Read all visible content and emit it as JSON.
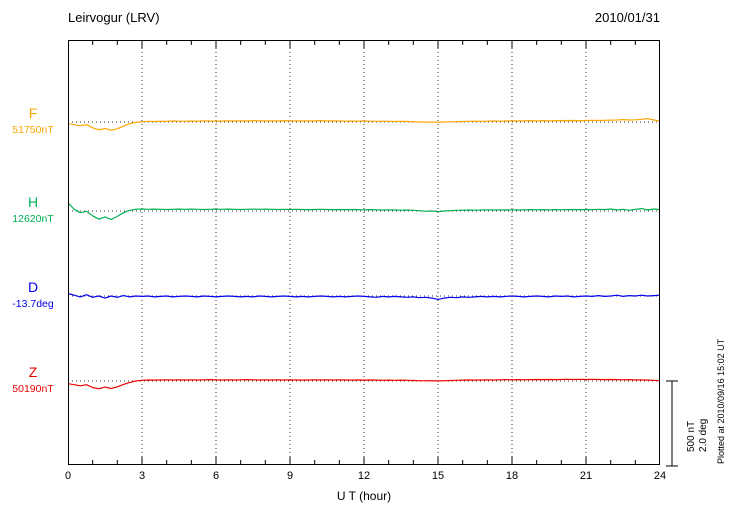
{
  "header": {
    "title": "Leirvogur (LRV)",
    "date": "2010/01/31"
  },
  "axis": {
    "xlabel": "U T (hour)",
    "ticks": [
      "0",
      "3",
      "6",
      "9",
      "12",
      "15",
      "18",
      "21",
      "24"
    ]
  },
  "scalebar": {
    "label_nt": "500 nT",
    "label_deg": "2.0 deg"
  },
  "watermark": "Plotted at 2010/09/16 15:02 UT",
  "chart_data": {
    "type": "line",
    "title": "Leirvogur (LRV)",
    "subtitle": "2010/01/31",
    "xlabel": "U T (hour)",
    "x_range_hours": [
      0,
      24
    ],
    "x_step_hours": 0.25,
    "x_tick_hours": [
      0,
      3,
      6,
      9,
      12,
      15,
      18,
      21,
      24
    ],
    "grid": "dotted vertical gridlines every 3 hours; dotted horizontal baseline per trace",
    "legend_position": "left margin, one colored label per trace",
    "scale": {
      "bar_nT": 500,
      "bar_deg": 2.0
    },
    "series": [
      {
        "name": "F",
        "baseline_label": "51750nT",
        "baseline": 51750,
        "units": "nT",
        "color": "#FFA500",
        "values": [
          51740,
          51734,
          51728,
          51734,
          51716,
          51704,
          51712,
          51702,
          51710,
          51726,
          51740,
          51748,
          51752,
          51754,
          51753,
          51755,
          51754,
          51756,
          51755,
          51754,
          51756,
          51755,
          51757,
          51756,
          51755,
          51756,
          51757,
          51756,
          51757,
          51756,
          51758,
          51757,
          51756,
          51757,
          51756,
          51758,
          51757,
          51756,
          51757,
          51756,
          51757,
          51758,
          51756,
          51757,
          51756,
          51755,
          51756,
          51755,
          51756,
          51755,
          51754,
          51755,
          51754,
          51753,
          51754,
          51753,
          51752,
          51750,
          51749,
          51750,
          51748,
          51750,
          51751,
          51752,
          51753,
          51754,
          51755,
          51754,
          51755,
          51756,
          51755,
          51756,
          51757,
          51756,
          51757,
          51758,
          51757,
          51758,
          51757,
          51758,
          51759,
          51758,
          51759,
          51758,
          51759,
          51760,
          51759,
          51760,
          51761,
          51762,
          51764,
          51762,
          51763,
          51766,
          51770,
          51762,
          51756
        ]
      },
      {
        "name": "H",
        "baseline_label": "12620nT",
        "baseline": 12620,
        "units": "nT",
        "color": "#00B050",
        "values": [
          12668,
          12630,
          12610,
          12618,
          12592,
          12572,
          12585,
          12570,
          12588,
          12610,
          12624,
          12630,
          12632,
          12630,
          12631,
          12630,
          12629,
          12630,
          12631,
          12630,
          12631,
          12630,
          12629,
          12630,
          12631,
          12630,
          12631,
          12630,
          12629,
          12630,
          12631,
          12630,
          12631,
          12630,
          12629,
          12630,
          12629,
          12630,
          12629,
          12628,
          12629,
          12630,
          12629,
          12628,
          12629,
          12628,
          12629,
          12628,
          12627,
          12628,
          12627,
          12626,
          12627,
          12626,
          12625,
          12626,
          12624,
          12622,
          12618,
          12620,
          12616,
          12620,
          12622,
          12624,
          12625,
          12626,
          12625,
          12626,
          12627,
          12626,
          12627,
          12626,
          12627,
          12626,
          12627,
          12628,
          12627,
          12628,
          12627,
          12628,
          12627,
          12628,
          12629,
          12628,
          12629,
          12628,
          12630,
          12628,
          12632,
          12626,
          12630,
          12624,
          12630,
          12634,
          12626,
          12632,
          12628
        ]
      },
      {
        "name": "D",
        "baseline_label": "-13.7deg",
        "baseline": -13.7,
        "units": "deg",
        "color": "#0000EE",
        "values": [
          -13.64,
          -13.68,
          -13.72,
          -13.67,
          -13.73,
          -13.7,
          -13.75,
          -13.7,
          -13.73,
          -13.69,
          -13.72,
          -13.7,
          -13.71,
          -13.7,
          -13.72,
          -13.71,
          -13.7,
          -13.72,
          -13.71,
          -13.7,
          -13.71,
          -13.72,
          -13.7,
          -13.71,
          -13.72,
          -13.71,
          -13.7,
          -13.71,
          -13.72,
          -13.71,
          -13.72,
          -13.7,
          -13.71,
          -13.72,
          -13.71,
          -13.7,
          -13.71,
          -13.72,
          -13.71,
          -13.72,
          -13.71,
          -13.7,
          -13.71,
          -13.72,
          -13.71,
          -13.72,
          -13.71,
          -13.7,
          -13.71,
          -13.72,
          -13.73,
          -13.71,
          -13.72,
          -13.71,
          -13.72,
          -13.73,
          -13.72,
          -13.74,
          -13.73,
          -13.75,
          -13.78,
          -13.75,
          -13.73,
          -13.74,
          -13.72,
          -13.73,
          -13.72,
          -13.71,
          -13.72,
          -13.71,
          -13.72,
          -13.71,
          -13.7,
          -13.71,
          -13.72,
          -13.71,
          -13.7,
          -13.71,
          -13.72,
          -13.7,
          -13.71,
          -13.7,
          -13.72,
          -13.71,
          -13.7,
          -13.71,
          -13.69,
          -13.71,
          -13.7,
          -13.68,
          -13.71,
          -13.69,
          -13.7,
          -13.68,
          -13.7,
          -13.69,
          -13.68
        ]
      },
      {
        "name": "Z",
        "baseline_label": "50190nT",
        "baseline": 50190,
        "units": "nT",
        "color": "#EE0000",
        "values": [
          50174,
          50168,
          50162,
          50168,
          50152,
          50144,
          50154,
          50146,
          50156,
          50170,
          50182,
          50190,
          50194,
          50196,
          50195,
          50196,
          50197,
          50196,
          50197,
          50196,
          50197,
          50196,
          50197,
          50198,
          50197,
          50196,
          50197,
          50196,
          50197,
          50198,
          50197,
          50196,
          50197,
          50196,
          50197,
          50196,
          50197,
          50196,
          50195,
          50196,
          50197,
          50196,
          50197,
          50196,
          50197,
          50196,
          50195,
          50196,
          50195,
          50196,
          50195,
          50194,
          50195,
          50194,
          50195,
          50194,
          50193,
          50192,
          50191,
          50192,
          50190,
          50192,
          50193,
          50194,
          50195,
          50196,
          50195,
          50196,
          50197,
          50196,
          50197,
          50198,
          50197,
          50198,
          50197,
          50198,
          50199,
          50198,
          50199,
          50198,
          50199,
          50200,
          50199,
          50200,
          50199,
          50200,
          50199,
          50198,
          50199,
          50198,
          50197,
          50198,
          50196,
          50197,
          50195,
          50194,
          50192
        ]
      }
    ]
  }
}
